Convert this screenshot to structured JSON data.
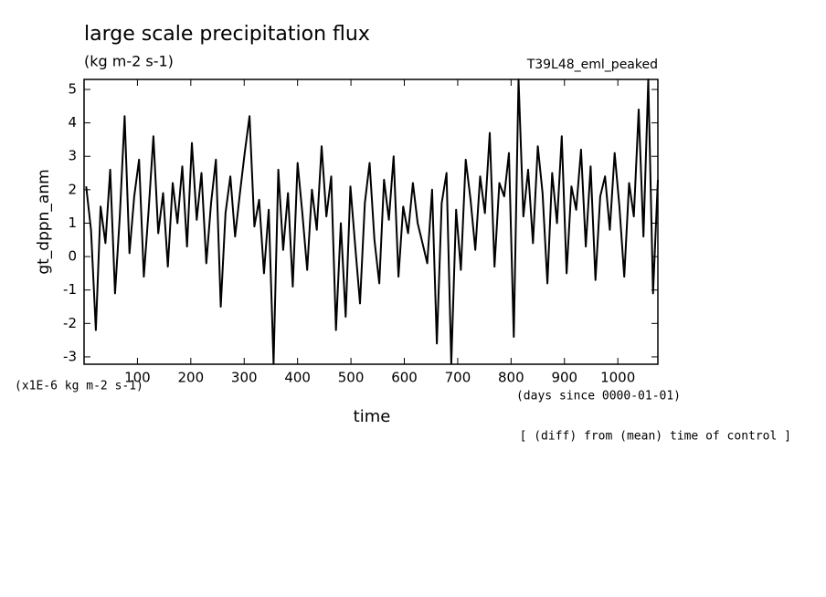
{
  "chart_data": {
    "type": "line",
    "title": "large scale precipitation flux",
    "subtitle": "(kg m-2 s-1)",
    "experiment": "T39L48_eml_peaked",
    "y_label": "gt_dppn_anm",
    "x_label": "time",
    "y_unit": "(x1E-6 kg m-2 s-1)",
    "x_unit": "(days since 0000-01-01)",
    "note": "[ (diff) from (mean) time of control ]",
    "color": "#000000",
    "xlim": [
      0,
      1075
    ],
    "ylim": [
      -3.22,
      5.3
    ],
    "xticks": [
      100,
      200,
      300,
      400,
      500,
      600,
      700,
      800,
      900,
      1000
    ],
    "yticks": [
      -3,
      -2,
      -1,
      0,
      1,
      2,
      3,
      4,
      5
    ],
    "x": [
      4,
      13,
      22,
      31,
      40,
      49,
      58,
      67,
      76,
      85,
      94,
      103,
      112,
      121,
      130,
      139,
      148,
      157,
      166,
      175,
      184,
      193,
      202,
      211,
      220,
      229,
      238,
      247,
      256,
      265,
      274,
      283,
      292,
      301,
      310,
      319,
      328,
      337,
      346,
      355,
      364,
      373,
      382,
      391,
      400,
      409,
      418,
      427,
      436,
      445,
      454,
      463,
      472,
      481,
      490,
      499,
      508,
      517,
      526,
      535,
      544,
      553,
      562,
      571,
      580,
      589,
      598,
      607,
      616,
      625,
      634,
      643,
      652,
      661,
      670,
      679,
      688,
      697,
      706,
      715,
      724,
      733,
      742,
      751,
      760,
      769,
      778,
      787,
      796,
      805,
      814,
      823,
      832,
      841,
      850,
      859,
      868,
      877,
      886,
      895,
      904,
      913,
      922,
      931,
      940,
      949,
      958,
      967,
      976,
      985,
      994,
      1003,
      1012,
      1021,
      1030,
      1039,
      1048,
      1057,
      1066,
      1075
    ],
    "series": [
      {
        "name": "gt_dppn_anm",
        "color": "#000000",
        "values": [
          2.1,
          0.8,
          -2.2,
          1.5,
          0.4,
          2.6,
          -1.1,
          1.2,
          4.2,
          0.1,
          1.8,
          2.9,
          -0.6,
          1.4,
          3.6,
          0.7,
          1.9,
          -0.3,
          2.2,
          1.0,
          2.7,
          0.3,
          3.4,
          1.1,
          2.5,
          -0.2,
          1.6,
          2.9,
          -1.5,
          1.3,
          2.4,
          0.6,
          1.9,
          3.1,
          4.2,
          0.9,
          1.7,
          -0.5,
          1.4,
          -3.2,
          2.6,
          0.2,
          1.9,
          -0.9,
          2.8,
          1.3,
          -0.4,
          2.0,
          0.8,
          3.3,
          1.2,
          2.4,
          -2.2,
          1.0,
          -1.8,
          2.1,
          0.3,
          -1.4,
          1.6,
          2.8,
          0.5,
          -0.8,
          2.3,
          1.1,
          3.0,
          -0.6,
          1.5,
          0.7,
          2.2,
          1.0,
          0.4,
          -0.2,
          2.0,
          -2.6,
          1.6,
          2.5,
          -3.2,
          1.4,
          -0.4,
          2.9,
          1.7,
          0.2,
          2.4,
          1.3,
          3.7,
          -0.3,
          2.2,
          1.8,
          3.1,
          -2.4,
          5.3,
          1.2,
          2.6,
          0.4,
          3.3,
          1.9,
          -0.8,
          2.5,
          1.0,
          3.6,
          -0.5,
          2.1,
          1.4,
          3.2,
          0.3,
          2.7,
          -0.7,
          1.8,
          2.4,
          0.8,
          3.1,
          1.5,
          -0.6,
          2.2,
          1.2,
          4.4,
          0.6,
          5.3,
          -1.1,
          2.3
        ]
      }
    ]
  }
}
